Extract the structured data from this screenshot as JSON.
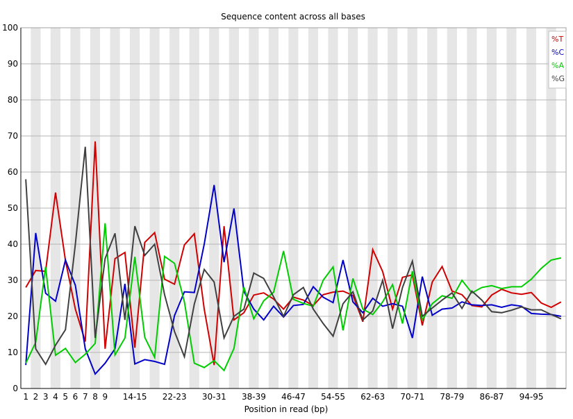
{
  "chart_data": {
    "type": "line",
    "title": "Sequence content across all bases",
    "xlabel": "Position in read (bp)",
    "ylabel": "",
    "ylim": [
      0,
      100
    ],
    "yticks": [
      0,
      10,
      20,
      30,
      40,
      50,
      60,
      70,
      80,
      90,
      100
    ],
    "grid": true,
    "legend_position": "top-right",
    "categories": [
      "1",
      "2",
      "3",
      "4",
      "5",
      "6",
      "7",
      "8",
      "9",
      "10-11",
      "12-13",
      "14-15",
      "16-17",
      "18-19",
      "20-21",
      "22-23",
      "24-25",
      "26-27",
      "28-29",
      "30-31",
      "32-33",
      "34-35",
      "36-37",
      "38-39",
      "40-41",
      "42-43",
      "44-45",
      "46-47",
      "48-49",
      "50-51",
      "52-53",
      "54-55",
      "56-57",
      "58-59",
      "60-61",
      "62-63",
      "64-65",
      "66-67",
      "68-69",
      "70-71",
      "72-73",
      "74-75",
      "76-77",
      "78-79",
      "80-81",
      "82-83",
      "84-85",
      "86-87",
      "88-89",
      "90-91",
      "92-93",
      "94-95",
      "96-97",
      "98-99",
      "100-101"
    ],
    "xtick_labels": [
      "1",
      "2",
      "3",
      "4",
      "5",
      "6",
      "7",
      "8",
      "9",
      "",
      "",
      "14-15",
      "",
      "",
      "",
      "22-23",
      "",
      "",
      "",
      "30-31",
      "",
      "",
      "",
      "38-39",
      "",
      "",
      "",
      "46-47",
      "",
      "",
      "",
      "54-55",
      "",
      "",
      "",
      "62-63",
      "",
      "",
      "",
      "70-71",
      "",
      "",
      "",
      "78-79",
      "",
      "",
      "",
      "86-87",
      "",
      "",
      "",
      "94-95",
      "",
      "",
      ""
    ],
    "series": [
      {
        "name": "%T",
        "color": "#d00000",
        "values": [
          28,
          32.7,
          32.5,
          54.3,
          35.5,
          22,
          13,
          68.5,
          11,
          36,
          37.7,
          11.3,
          40.5,
          43.2,
          30.3,
          28.9,
          39.8,
          42.9,
          22,
          6.5,
          45,
          19,
          21,
          25.9,
          26.5,
          24.8,
          22,
          25.3,
          24.5,
          23,
          26,
          26.7,
          27,
          25.8,
          18.5,
          38.5,
          32.4,
          22,
          30.8,
          31.5,
          17.5,
          29.5,
          33.8,
          27,
          26,
          23,
          22.6,
          25.9,
          27.5,
          26.5,
          26.1,
          26.6,
          23.7,
          22.5,
          24
        ]
      },
      {
        "name": "%C",
        "color": "#0000c8",
        "values": [
          6.5,
          43.1,
          26.4,
          24.2,
          35.6,
          28.6,
          11,
          4,
          7,
          11,
          29,
          6.8,
          8,
          7.5,
          6.7,
          20.2,
          26.8,
          26.6,
          40,
          56.4,
          35,
          49.9,
          26.9,
          22,
          19,
          22.8,
          19.8,
          23,
          23.3,
          28.2,
          25.3,
          23.8,
          35.6,
          24,
          21,
          25,
          22.8,
          23.5,
          22.8,
          14,
          31,
          20.3,
          22,
          22.3,
          24,
          23.2,
          23,
          23.2,
          22.5,
          23.2,
          22.8,
          20.8,
          20.6,
          20.5,
          20
        ]
      },
      {
        "name": "%A",
        "color": "#00cc00",
        "values": [
          7,
          12.8,
          33.7,
          9.2,
          11.1,
          7.2,
          9.5,
          12.5,
          45.8,
          9.3,
          14,
          36.5,
          14.2,
          8.6,
          36.6,
          34.7,
          24,
          7,
          5.8,
          7.7,
          5,
          11.1,
          28.1,
          19.3,
          24.3,
          26.7,
          38.1,
          24.7,
          23.6,
          22.8,
          30,
          33.7,
          16.1,
          30.5,
          22,
          20.5,
          24,
          28.8,
          18,
          32.5,
          19,
          23.5,
          25.7,
          25,
          30,
          26.5,
          28,
          28.5,
          27.7,
          28.2,
          28.2,
          30.3,
          33.3,
          35.6,
          36.2
        ]
      },
      {
        "name": "%G",
        "color": "#404040",
        "values": [
          58,
          11,
          6.7,
          12,
          16.3,
          40,
          67,
          14,
          36,
          43,
          19,
          45,
          36.9,
          40,
          26,
          15.8,
          8.8,
          23.4,
          33,
          29.5,
          14,
          20,
          22,
          32,
          30.5,
          25.4,
          20,
          26,
          28,
          22,
          18,
          14.5,
          23.5,
          26.8,
          19,
          21.5,
          30,
          16.6,
          28,
          35.3,
          20,
          22.3,
          24.5,
          26.5,
          22.2,
          27,
          24.5,
          21.3,
          21,
          21.7,
          22.6,
          21.8,
          21.8,
          20.5,
          19.3
        ]
      }
    ]
  }
}
